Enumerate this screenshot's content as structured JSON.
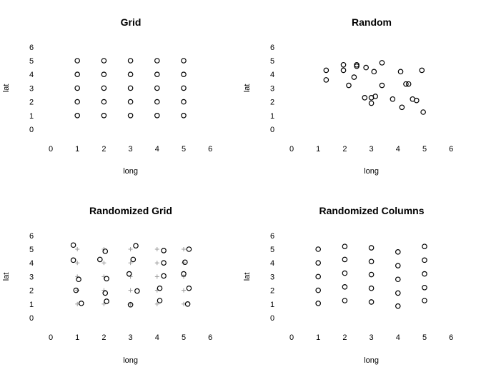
{
  "chart_data": [
    {
      "type": "scatter",
      "title": "Grid",
      "xlabel": "long",
      "ylabel": "lat",
      "xlim": [
        0,
        6
      ],
      "ylim": [
        0,
        6
      ],
      "xticks": [
        "0",
        "1",
        "2",
        "3",
        "4",
        "5",
        "6"
      ],
      "yticks": [
        "0",
        "1",
        "2",
        "3",
        "4",
        "5",
        "6"
      ],
      "grid": false,
      "series": [
        {
          "marker": "circle",
          "points": [
            [
              1,
              1
            ],
            [
              1,
              2
            ],
            [
              1,
              3
            ],
            [
              1,
              4
            ],
            [
              1,
              5
            ],
            [
              2,
              1
            ],
            [
              2,
              2
            ],
            [
              2,
              3
            ],
            [
              2,
              4
            ],
            [
              2,
              5
            ],
            [
              3,
              1
            ],
            [
              3,
              2
            ],
            [
              3,
              3
            ],
            [
              3,
              4
            ],
            [
              3,
              5
            ],
            [
              4,
              1
            ],
            [
              4,
              2
            ],
            [
              4,
              3
            ],
            [
              4,
              4
            ],
            [
              4,
              5
            ],
            [
              5,
              1
            ],
            [
              5,
              2
            ],
            [
              5,
              3
            ],
            [
              5,
              4
            ],
            [
              5,
              5
            ]
          ]
        }
      ]
    },
    {
      "type": "scatter",
      "title": "Random",
      "xlabel": "long",
      "ylabel": "lat",
      "xlim": [
        0,
        6
      ],
      "ylim": [
        0,
        6
      ],
      "xticks": [
        "0",
        "1",
        "2",
        "3",
        "4",
        "5",
        "6"
      ],
      "yticks": [
        "0",
        "1",
        "2",
        "3",
        "4",
        "5",
        "6"
      ],
      "grid": false,
      "series": [
        {
          "marker": "circle",
          "points": [
            [
              1.3,
              4.3
            ],
            [
              1.3,
              3.6
            ],
            [
              1.95,
              4.7
            ],
            [
              1.95,
              4.3
            ],
            [
              2.15,
              3.2
            ],
            [
              2.35,
              3.8
            ],
            [
              2.45,
              4.6
            ],
            [
              2.45,
              4.7
            ],
            [
              2.8,
              4.5
            ],
            [
              2.75,
              2.3
            ],
            [
              3.0,
              2.3
            ],
            [
              3.0,
              1.9
            ],
            [
              3.15,
              2.4
            ],
            [
              3.1,
              4.2
            ],
            [
              3.4,
              4.85
            ],
            [
              3.4,
              3.2
            ],
            [
              3.8,
              2.2
            ],
            [
              4.1,
              4.2
            ],
            [
              4.15,
              1.6
            ],
            [
              4.3,
              3.3
            ],
            [
              4.4,
              3.3
            ],
            [
              4.55,
              2.2
            ],
            [
              4.7,
              2.1
            ],
            [
              4.9,
              4.3
            ],
            [
              4.95,
              1.25
            ]
          ]
        }
      ]
    },
    {
      "type": "scatter",
      "title": "Randomized Grid",
      "xlabel": "long",
      "ylabel": "lat",
      "xlim": [
        0,
        6
      ],
      "ylim": [
        0,
        6
      ],
      "xticks": [
        "0",
        "1",
        "2",
        "3",
        "4",
        "5",
        "6"
      ],
      "yticks": [
        "0",
        "1",
        "2",
        "3",
        "4",
        "5",
        "6"
      ],
      "grid": false,
      "series": [
        {
          "marker": "circle",
          "points": [
            [
              0.85,
              5.3
            ],
            [
              0.85,
              4.2
            ],
            [
              1.05,
              2.8
            ],
            [
              0.95,
              2.0
            ],
            [
              1.15,
              1.05
            ],
            [
              2.05,
              4.85
            ],
            [
              1.85,
              4.25
            ],
            [
              2.1,
              2.85
            ],
            [
              2.05,
              1.8
            ],
            [
              2.1,
              1.2
            ],
            [
              3.2,
              5.25
            ],
            [
              3.1,
              4.25
            ],
            [
              2.95,
              3.2
            ],
            [
              3.25,
              1.95
            ],
            [
              3.0,
              0.95
            ],
            [
              4.25,
              4.9
            ],
            [
              4.25,
              4.0
            ],
            [
              4.25,
              3.05
            ],
            [
              4.1,
              2.15
            ],
            [
              4.1,
              1.25
            ],
            [
              5.2,
              5.0
            ],
            [
              5.05,
              4.05
            ],
            [
              5.0,
              3.2
            ],
            [
              5.2,
              2.15
            ],
            [
              5.15,
              1.0
            ]
          ]
        },
        {
          "marker": "plus",
          "points": [
            [
              1,
              1
            ],
            [
              1,
              2
            ],
            [
              1,
              3
            ],
            [
              1,
              4
            ],
            [
              1,
              5
            ],
            [
              2,
              1
            ],
            [
              2,
              2
            ],
            [
              2,
              3
            ],
            [
              2,
              4
            ],
            [
              2,
              5
            ],
            [
              3,
              1
            ],
            [
              3,
              2
            ],
            [
              3,
              3
            ],
            [
              3,
              4
            ],
            [
              3,
              5
            ],
            [
              4,
              1
            ],
            [
              4,
              2
            ],
            [
              4,
              3
            ],
            [
              4,
              4
            ],
            [
              4,
              5
            ],
            [
              5,
              1
            ],
            [
              5,
              2
            ],
            [
              5,
              3
            ],
            [
              5,
              4
            ],
            [
              5,
              5
            ]
          ]
        }
      ]
    },
    {
      "type": "scatter",
      "title": "Randomized Columns",
      "xlabel": "long",
      "ylabel": "lat",
      "xlim": [
        0,
        6
      ],
      "ylim": [
        0,
        6
      ],
      "xticks": [
        "0",
        "1",
        "2",
        "3",
        "4",
        "5",
        "6"
      ],
      "yticks": [
        "0",
        "1",
        "2",
        "3",
        "4",
        "5",
        "6"
      ],
      "grid": false,
      "series": [
        {
          "marker": "circle",
          "points": [
            [
              1,
              1.05
            ],
            [
              1,
              2.0
            ],
            [
              1,
              3.0
            ],
            [
              1,
              4.0
            ],
            [
              1,
              5.0
            ],
            [
              2,
              1.25
            ],
            [
              2,
              2.25
            ],
            [
              2,
              3.25
            ],
            [
              2,
              4.25
            ],
            [
              2,
              5.2
            ],
            [
              3,
              1.15
            ],
            [
              3,
              2.15
            ],
            [
              3,
              3.15
            ],
            [
              3,
              4.1
            ],
            [
              3,
              5.1
            ],
            [
              4,
              0.85
            ],
            [
              4,
              1.8
            ],
            [
              4,
              2.8
            ],
            [
              4,
              3.8
            ],
            [
              4,
              4.8
            ],
            [
              5,
              1.25
            ],
            [
              5,
              2.2
            ],
            [
              5,
              3.2
            ],
            [
              5,
              4.2
            ],
            [
              5,
              5.2
            ]
          ]
        }
      ]
    }
  ]
}
